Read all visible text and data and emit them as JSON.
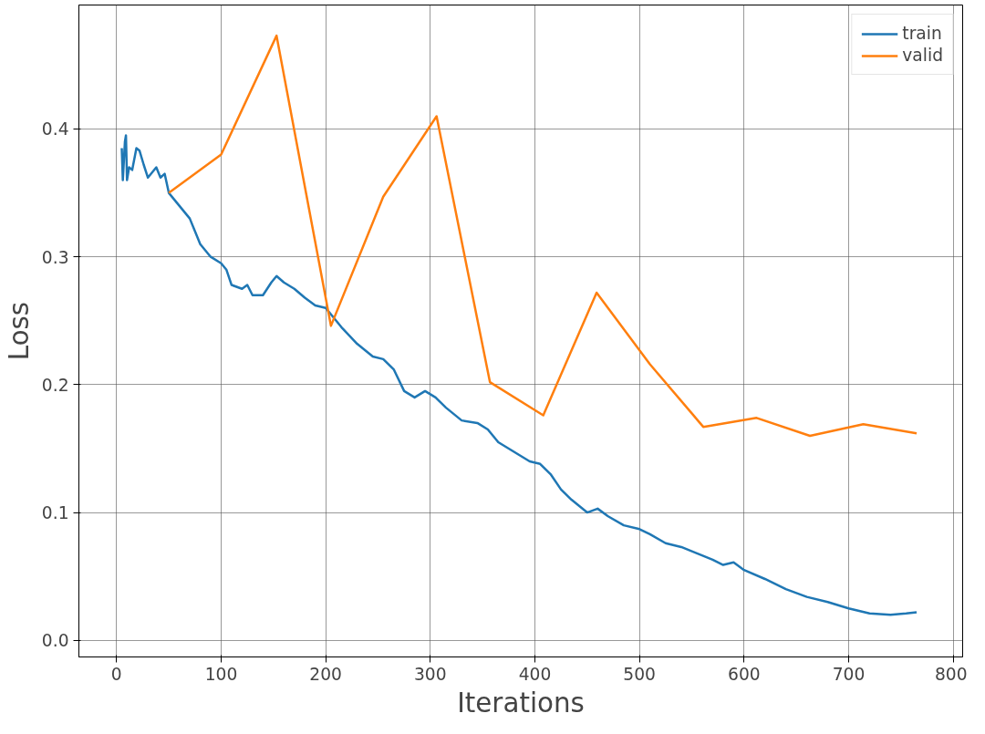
{
  "chart_data": {
    "type": "line",
    "xlabel": "Iterations",
    "ylabel": "Loss",
    "xlim": [
      -36,
      809
    ],
    "ylim": [
      -0.013,
      0.497
    ],
    "xticks": [
      0,
      100,
      200,
      300,
      400,
      500,
      600,
      700,
      800
    ],
    "yticks": [
      {
        "value": 0,
        "label": "0.0"
      },
      {
        "value": 0.1,
        "label": "0.1"
      },
      {
        "value": 0.2,
        "label": "0.2"
      },
      {
        "value": 0.3,
        "label": "0.3"
      },
      {
        "value": 0.4,
        "label": "0.4"
      }
    ],
    "grid": true,
    "legend": "top right",
    "line_style": "solid",
    "series": [
      {
        "name": "train",
        "color": "#1f77b4",
        "x": [
          5,
          6,
          8,
          9,
          10,
          12,
          15,
          19,
          22,
          26,
          30,
          35,
          38,
          42,
          46,
          50,
          55,
          60,
          70,
          80,
          90,
          100,
          105,
          110,
          120,
          125,
          130,
          140,
          148,
          153,
          160,
          170,
          180,
          190,
          200,
          205,
          215,
          230,
          245,
          255,
          265,
          275,
          285,
          295,
          305,
          315,
          330,
          345,
          355,
          365,
          375,
          385,
          395,
          405,
          415,
          425,
          435,
          450,
          460,
          470,
          485,
          500,
          510,
          525,
          540,
          555,
          570,
          580,
          590,
          600,
          620,
          640,
          660,
          680,
          700,
          720,
          740,
          755,
          765
        ],
        "values": [
          0.385,
          0.36,
          0.39,
          0.395,
          0.36,
          0.37,
          0.368,
          0.385,
          0.383,
          0.372,
          0.362,
          0.367,
          0.37,
          0.362,
          0.365,
          0.35,
          0.345,
          0.34,
          0.33,
          0.31,
          0.3,
          0.295,
          0.29,
          0.278,
          0.275,
          0.278,
          0.27,
          0.27,
          0.28,
          0.285,
          0.28,
          0.275,
          0.268,
          0.262,
          0.26,
          0.255,
          0.245,
          0.232,
          0.222,
          0.22,
          0.212,
          0.195,
          0.19,
          0.195,
          0.19,
          0.182,
          0.172,
          0.17,
          0.165,
          0.155,
          0.15,
          0.145,
          0.14,
          0.138,
          0.13,
          0.118,
          0.11,
          0.1,
          0.103,
          0.097,
          0.09,
          0.087,
          0.083,
          0.076,
          0.073,
          0.068,
          0.063,
          0.059,
          0.061,
          0.055,
          0.048,
          0.04,
          0.034,
          0.03,
          0.025,
          0.021,
          0.02,
          0.021,
          0.022
        ]
      },
      {
        "name": "valid",
        "color": "#ff7f0e",
        "x": [
          50,
          100,
          153,
          205,
          255,
          306,
          357,
          408,
          459,
          510,
          561,
          612,
          663,
          714,
          765
        ],
        "values": [
          0.35,
          0.38,
          0.473,
          0.246,
          0.347,
          0.41,
          0.202,
          0.176,
          0.272,
          0.216,
          0.167,
          0.174,
          0.16,
          0.169,
          0.162
        ]
      }
    ]
  }
}
